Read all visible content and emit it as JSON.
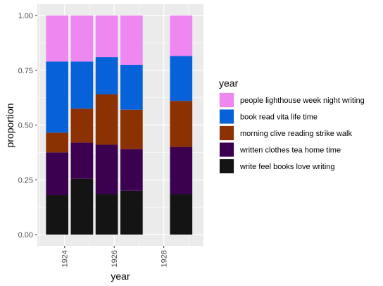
{
  "chart_data": {
    "type": "bar",
    "stacked": "fill",
    "xlabel": "year",
    "ylabel": "proportion",
    "xlim": [
      1922.9,
      1929.6
    ],
    "ylim": [
      0,
      1
    ],
    "x_ticks": [
      {
        "value": 1924,
        "label": "1924"
      },
      {
        "value": 1926,
        "label": "1926"
      },
      {
        "value": 1928,
        "label": "1928"
      }
    ],
    "y_ticks": [
      {
        "value": 0.0,
        "label": "0.00"
      },
      {
        "value": 0.25,
        "label": "0.25"
      },
      {
        "value": 0.5,
        "label": "0.50"
      },
      {
        "value": 0.75,
        "label": "0.75"
      },
      {
        "value": 1.0,
        "label": "1.00"
      }
    ],
    "x": [
      1923.7,
      1924.7,
      1925.7,
      1926.7,
      1928.7
    ],
    "legend": {
      "title": "year",
      "position": "right"
    },
    "series": [
      {
        "name": "write feel books love writing",
        "color": "#141414",
        "values": [
          0.18,
          0.255,
          0.185,
          0.2,
          0.185
        ]
      },
      {
        "name": "written clothes tea home time",
        "color": "#3c0050",
        "values": [
          0.195,
          0.165,
          0.225,
          0.19,
          0.215
        ]
      },
      {
        "name": "morning clive reading strike walk",
        "color": "#8b3102",
        "values": [
          0.09,
          0.155,
          0.23,
          0.18,
          0.21
        ]
      },
      {
        "name": "book read vita life time",
        "color": "#0762d9",
        "values": [
          0.325,
          0.215,
          0.17,
          0.205,
          0.205
        ]
      },
      {
        "name": "people lighthouse week night writing",
        "color": "#ee88f0",
        "values": [
          0.21,
          0.21,
          0.19,
          0.225,
          0.185
        ]
      }
    ],
    "legend_order": [
      "people lighthouse week night writing",
      "book read vita life time",
      "morning clive reading strike walk",
      "written clothes tea home time",
      "write feel books love writing"
    ],
    "grid": true,
    "panel_background": "#ebebeb"
  }
}
